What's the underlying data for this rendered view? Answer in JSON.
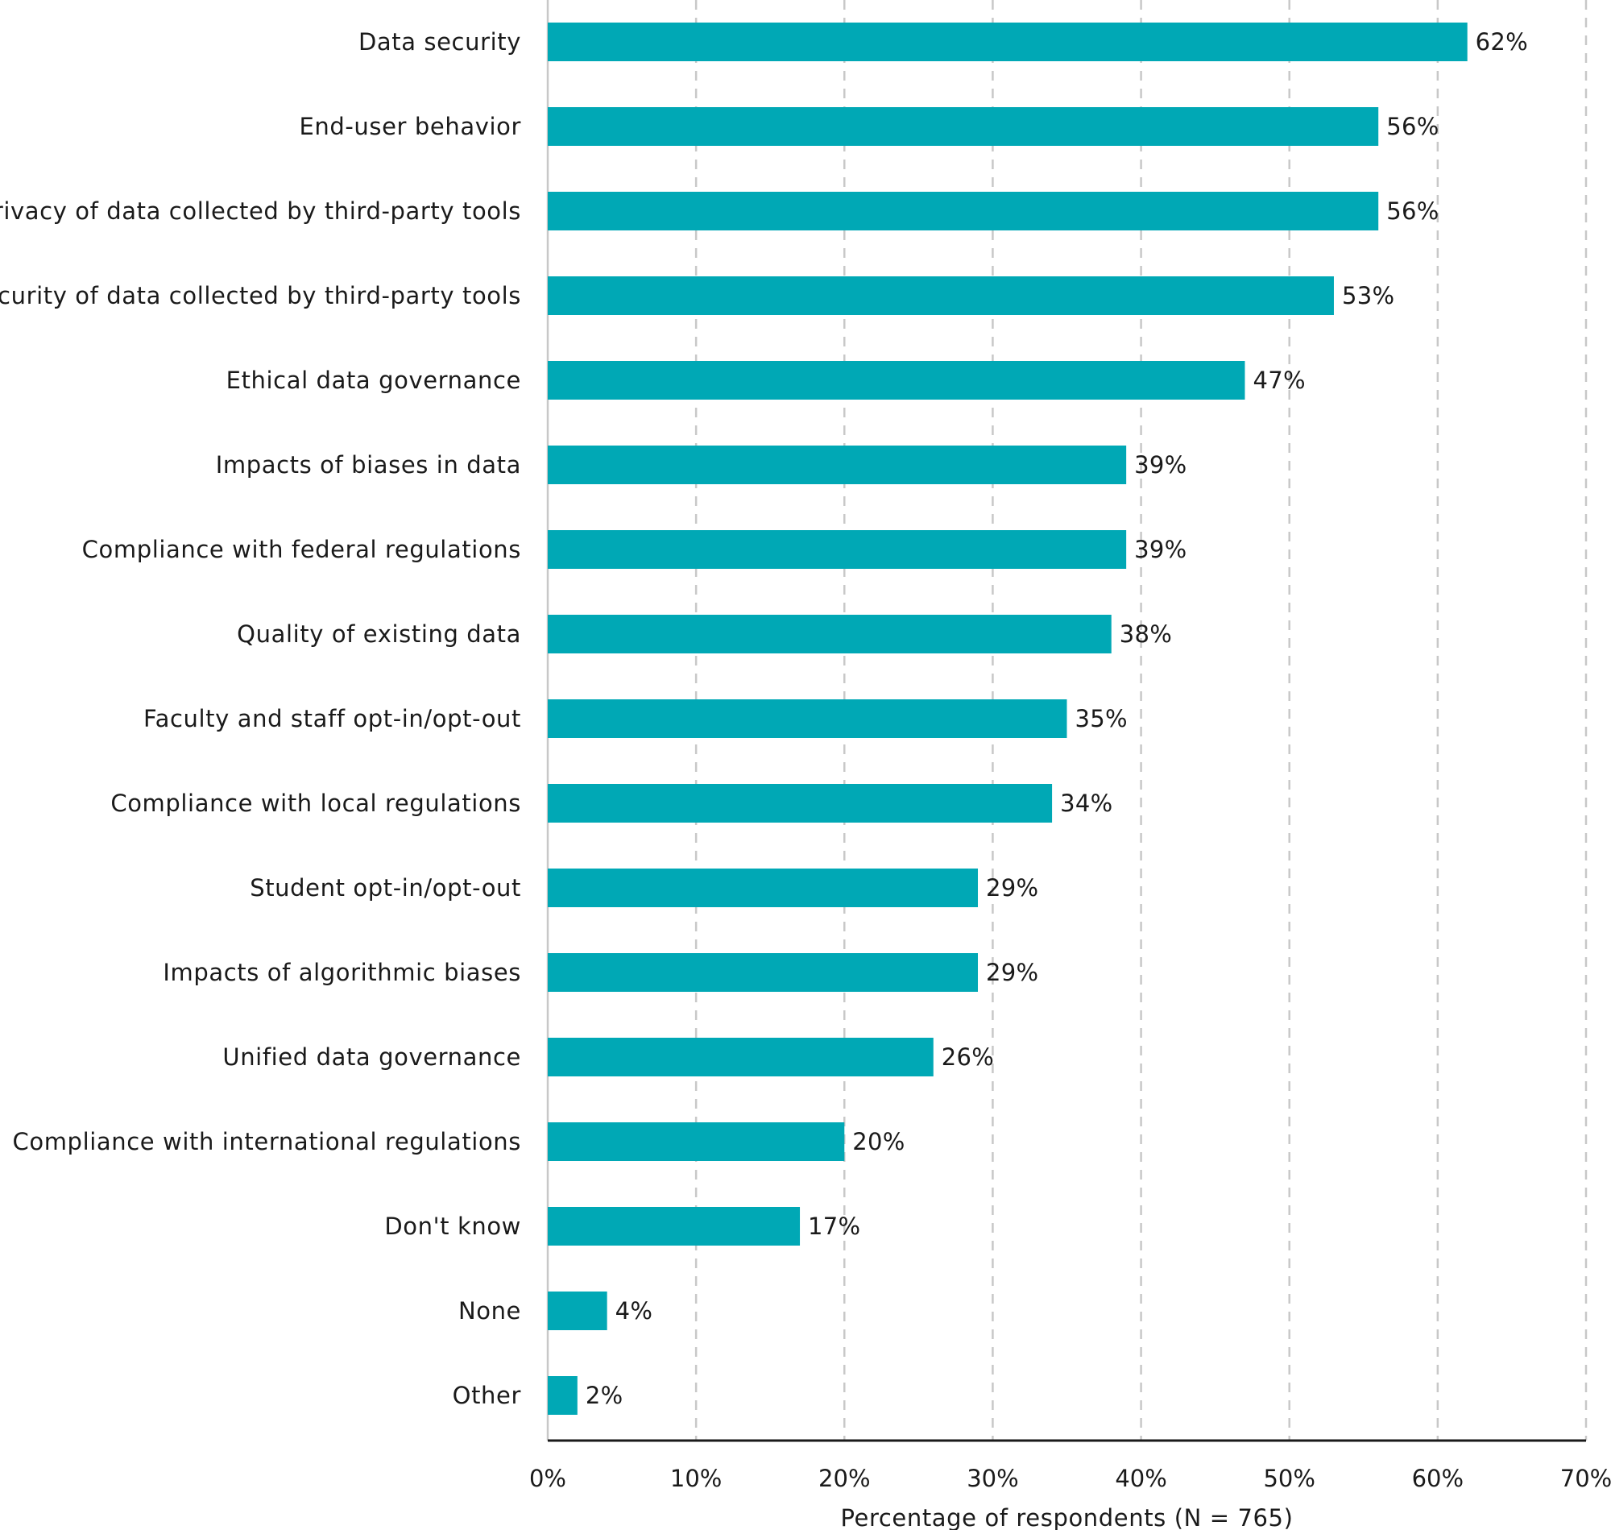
{
  "chart_data": {
    "type": "bar",
    "orientation": "horizontal",
    "categories": [
      "Data security",
      "End-user behavior",
      "Privacy of data collected by third-party tools",
      "Security of data collected by third-party tools",
      "Ethical data governance",
      "Impacts of biases in data",
      "Compliance with federal regulations",
      "Quality of existing data",
      "Faculty and staff opt-in/opt-out",
      "Compliance with local regulations",
      "Student opt-in/opt-out",
      "Impacts of algorithmic biases",
      "Unified data governance",
      "Compliance with international regulations",
      "Don't know",
      "None",
      "Other"
    ],
    "values": [
      62,
      56,
      56,
      53,
      47,
      39,
      39,
      38,
      35,
      34,
      29,
      29,
      26,
      20,
      17,
      4,
      2
    ],
    "value_labels": [
      "62%",
      "56%",
      "56%",
      "53%",
      "47%",
      "39%",
      "39%",
      "38%",
      "35%",
      "34%",
      "29%",
      "29%",
      "26%",
      "20%",
      "17%",
      "4%",
      "2%"
    ],
    "title": "",
    "xlabel": "Percentage of respondents (N = 765)",
    "ylabel": "",
    "xlim": [
      0,
      70
    ],
    "x_ticks": [
      0,
      10,
      20,
      30,
      40,
      50,
      60,
      70
    ],
    "x_tick_labels": [
      "0%",
      "10%",
      "20%",
      "30%",
      "40%",
      "50%",
      "60%",
      "70%"
    ],
    "grid": "vertical-dashed",
    "legend": "none",
    "bar_color": "#00a8b5",
    "grid_color": "#c8c8c8",
    "axis_color": "#1a1a1a"
  }
}
